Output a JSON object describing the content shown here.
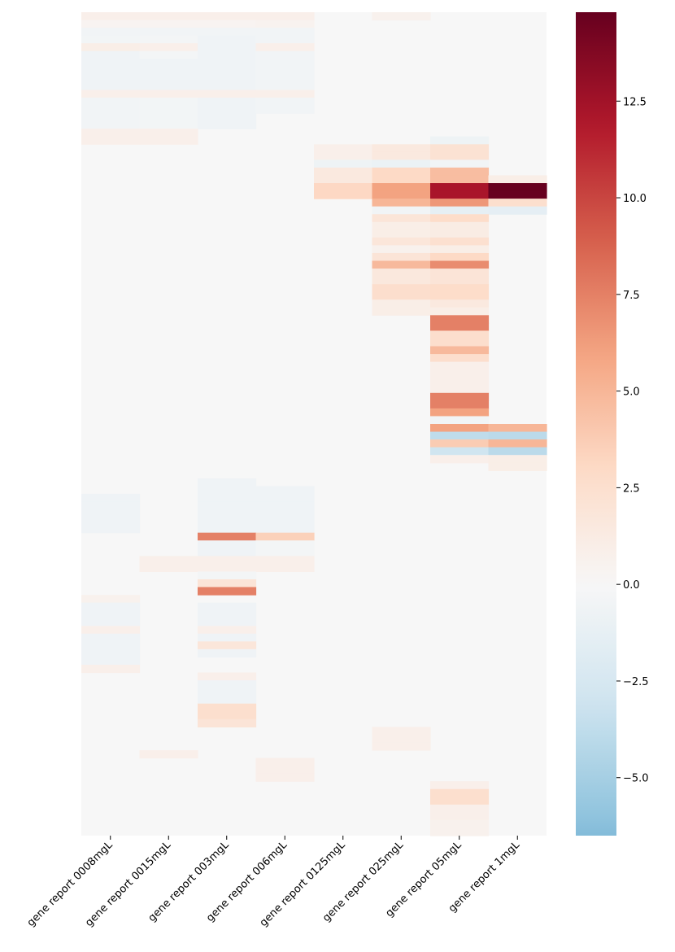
{
  "chart_data": {
    "type": "heatmap",
    "title": "",
    "xlabel": "",
    "ylabel": "",
    "columns": [
      "gene report 0008mgL",
      "gene report 0015mgL",
      "gene report 003mgL",
      "gene report 006mgL",
      "gene report 0125mgL",
      "gene report 025mgL",
      "gene report 05mgL",
      "gene report 1mgL"
    ],
    "n_rows": 106,
    "colormap": "RdBu_r",
    "center": 0,
    "vmin": -6.5,
    "vmax": 14.8,
    "colorbar_ticks": [
      -5.0,
      -2.5,
      0.0,
      2.5,
      5.0,
      7.5,
      10.0,
      12.5
    ],
    "colorbar_tick_labels": [
      "−5.0",
      "−2.5",
      "0.0",
      "2.5",
      "5.0",
      "7.5",
      "10.0",
      "12.5"
    ],
    "cells": [
      [
        0,
        1,
        0.8
      ],
      [
        0,
        2,
        0.8
      ],
      [
        0,
        3,
        0.8
      ],
      [
        0,
        4,
        0.8
      ],
      [
        0,
        6,
        0.6
      ],
      [
        1,
        1,
        0.4
      ],
      [
        1,
        2,
        0.4
      ],
      [
        1,
        3,
        0.4
      ],
      [
        1,
        4,
        0.5
      ],
      [
        2,
        1,
        -0.5
      ],
      [
        2,
        2,
        -0.5
      ],
      [
        2,
        3,
        -0.5
      ],
      [
        2,
        4,
        -0.5
      ],
      [
        3,
        1,
        -0.4
      ],
      [
        3,
        2,
        -0.3
      ],
      [
        3,
        3,
        -0.6
      ],
      [
        3,
        4,
        -0.5
      ],
      [
        4,
        1,
        1.0
      ],
      [
        4,
        2,
        0.8
      ],
      [
        4,
        3,
        -0.6
      ],
      [
        4,
        4,
        0.8
      ],
      [
        5,
        1,
        -0.6
      ],
      [
        5,
        2,
        -0.3
      ],
      [
        5,
        3,
        -0.6
      ],
      [
        5,
        4,
        -0.5
      ],
      [
        6,
        1,
        -0.6
      ],
      [
        6,
        2,
        -0.6
      ],
      [
        6,
        3,
        -0.6
      ],
      [
        6,
        4,
        -0.5
      ],
      [
        7,
        1,
        -0.6
      ],
      [
        7,
        2,
        -0.6
      ],
      [
        7,
        3,
        -0.6
      ],
      [
        7,
        4,
        -0.5
      ],
      [
        8,
        1,
        -0.6
      ],
      [
        8,
        2,
        -0.6
      ],
      [
        8,
        3,
        -0.6
      ],
      [
        8,
        4,
        -0.5
      ],
      [
        9,
        1,
        -0.6
      ],
      [
        9,
        2,
        -0.6
      ],
      [
        9,
        3,
        -0.6
      ],
      [
        9,
        4,
        -0.5
      ],
      [
        10,
        1,
        0.8
      ],
      [
        10,
        2,
        0.8
      ],
      [
        10,
        3,
        0.8
      ],
      [
        10,
        4,
        0.8
      ],
      [
        11,
        1,
        -0.5
      ],
      [
        11,
        2,
        -0.4
      ],
      [
        11,
        3,
        -0.6
      ],
      [
        11,
        4,
        -0.5
      ],
      [
        12,
        1,
        -0.5
      ],
      [
        12,
        2,
        -0.4
      ],
      [
        12,
        3,
        -0.6
      ],
      [
        12,
        4,
        -0.5
      ],
      [
        13,
        1,
        -0.5
      ],
      [
        13,
        2,
        -0.4
      ],
      [
        13,
        3,
        -0.6
      ],
      [
        14,
        1,
        -0.5
      ],
      [
        14,
        2,
        -0.4
      ],
      [
        14,
        3,
        -0.6
      ],
      [
        15,
        1,
        0.8
      ],
      [
        15,
        2,
        0.8
      ],
      [
        16,
        1,
        0.8
      ],
      [
        16,
        2,
        0.8
      ],
      [
        16,
        7,
        -0.7
      ],
      [
        17,
        5,
        0.8
      ],
      [
        17,
        6,
        1.5
      ],
      [
        17,
        7,
        2.2
      ],
      [
        18,
        5,
        0.8
      ],
      [
        18,
        6,
        1.5
      ],
      [
        18,
        7,
        2.2
      ],
      [
        19,
        5,
        -0.7
      ],
      [
        19,
        6,
        -0.9
      ],
      [
        19,
        7,
        -0.5
      ],
      [
        20,
        5,
        1.5
      ],
      [
        20,
        6,
        3.0
      ],
      [
        20,
        7,
        4.6
      ],
      [
        21,
        5,
        1.5
      ],
      [
        21,
        6,
        3.0
      ],
      [
        21,
        7,
        4.6
      ],
      [
        21,
        8,
        1.0
      ],
      [
        22,
        5,
        3.1
      ],
      [
        22,
        6,
        6.0
      ],
      [
        22,
        7,
        12.2
      ],
      [
        22,
        8,
        14.8
      ],
      [
        23,
        5,
        3.1
      ],
      [
        23,
        6,
        6.0
      ],
      [
        23,
        7,
        12.2
      ],
      [
        23,
        8,
        14.8
      ],
      [
        24,
        6,
        5.0
      ],
      [
        24,
        7,
        6.5
      ],
      [
        24,
        8,
        2.5
      ],
      [
        25,
        6,
        -0.5
      ],
      [
        25,
        7,
        -1.3
      ],
      [
        25,
        8,
        -1.4
      ],
      [
        26,
        6,
        1.9
      ],
      [
        26,
        7,
        2.8
      ],
      [
        27,
        6,
        1.0
      ],
      [
        27,
        7,
        1.2
      ],
      [
        28,
        6,
        1.0
      ],
      [
        28,
        7,
        1.2
      ],
      [
        29,
        6,
        1.8
      ],
      [
        29,
        7,
        2.4
      ],
      [
        30,
        6,
        0.6
      ],
      [
        30,
        7,
        1.0
      ],
      [
        31,
        6,
        2.0
      ],
      [
        31,
        7,
        3.0
      ],
      [
        32,
        6,
        4.8
      ],
      [
        32,
        7,
        7.0
      ],
      [
        33,
        6,
        1.6
      ],
      [
        33,
        7,
        2.0
      ],
      [
        34,
        6,
        1.6
      ],
      [
        34,
        7,
        2.0
      ],
      [
        35,
        6,
        2.6
      ],
      [
        35,
        7,
        2.8
      ],
      [
        36,
        6,
        2.6
      ],
      [
        36,
        7,
        2.8
      ],
      [
        37,
        6,
        1.0
      ],
      [
        37,
        7,
        1.5
      ],
      [
        38,
        6,
        1.0
      ],
      [
        38,
        7,
        1.0
      ],
      [
        39,
        7,
        7.5
      ],
      [
        40,
        7,
        7.5
      ],
      [
        41,
        7,
        2.6
      ],
      [
        42,
        7,
        2.6
      ],
      [
        43,
        7,
        4.8
      ],
      [
        44,
        7,
        2.6
      ],
      [
        45,
        7,
        0.8
      ],
      [
        46,
        7,
        0.8
      ],
      [
        47,
        7,
        0.8
      ],
      [
        48,
        7,
        0.8
      ],
      [
        49,
        7,
        7.5
      ],
      [
        50,
        7,
        7.5
      ],
      [
        51,
        7,
        6.0
      ],
      [
        52,
        7,
        -0.5
      ],
      [
        53,
        7,
        6.0
      ],
      [
        53,
        8,
        5.0
      ],
      [
        54,
        7,
        -3.8
      ],
      [
        54,
        8,
        -4.0
      ],
      [
        55,
        7,
        3.8
      ],
      [
        55,
        8,
        5.0
      ],
      [
        56,
        7,
        -3.0
      ],
      [
        56,
        8,
        -4.0
      ],
      [
        57,
        7,
        0.8
      ],
      [
        57,
        8,
        1.0
      ],
      [
        58,
        8,
        1.0
      ],
      [
        60,
        3,
        -0.6
      ],
      [
        61,
        3,
        -0.6
      ],
      [
        61,
        4,
        -0.6
      ],
      [
        62,
        1,
        -0.6
      ],
      [
        62,
        3,
        -0.6
      ],
      [
        62,
        4,
        -0.6
      ],
      [
        63,
        1,
        -0.6
      ],
      [
        63,
        3,
        -0.6
      ],
      [
        63,
        4,
        -0.6
      ],
      [
        64,
        1,
        -0.6
      ],
      [
        64,
        3,
        -0.6
      ],
      [
        64,
        4,
        -0.6
      ],
      [
        65,
        1,
        -0.6
      ],
      [
        65,
        3,
        -0.6
      ],
      [
        65,
        4,
        -0.6
      ],
      [
        66,
        1,
        -0.6
      ],
      [
        66,
        3,
        -0.6
      ],
      [
        66,
        4,
        -0.6
      ],
      [
        67,
        3,
        7.5
      ],
      [
        67,
        4,
        3.5
      ],
      [
        68,
        3,
        -0.6
      ],
      [
        68,
        4,
        -0.3
      ],
      [
        69,
        3,
        -0.6
      ],
      [
        69,
        4,
        -0.3
      ],
      [
        70,
        2,
        0.8
      ],
      [
        70,
        3,
        0.8
      ],
      [
        70,
        4,
        0.8
      ],
      [
        71,
        2,
        0.8
      ],
      [
        71,
        3,
        0.8
      ],
      [
        71,
        4,
        0.8
      ],
      [
        72,
        3,
        -0.3
      ],
      [
        73,
        3,
        2.0
      ],
      [
        74,
        3,
        7.5
      ],
      [
        75,
        1,
        0.6
      ],
      [
        76,
        1,
        -0.6
      ],
      [
        76,
        3,
        -0.6
      ],
      [
        77,
        1,
        -0.6
      ],
      [
        77,
        3,
        -0.6
      ],
      [
        78,
        1,
        -0.6
      ],
      [
        78,
        3,
        -0.6
      ],
      [
        79,
        1,
        0.8
      ],
      [
        79,
        3,
        0.8
      ],
      [
        80,
        1,
        -0.6
      ],
      [
        80,
        3,
        -0.6
      ],
      [
        81,
        1,
        -0.6
      ],
      [
        81,
        3,
        1.8
      ],
      [
        82,
        1,
        -0.6
      ],
      [
        82,
        3,
        -0.6
      ],
      [
        83,
        1,
        -0.6
      ],
      [
        84,
        1,
        0.8
      ],
      [
        85,
        3,
        0.8
      ],
      [
        86,
        3,
        -0.6
      ],
      [
        87,
        3,
        -0.6
      ],
      [
        88,
        3,
        -0.6
      ],
      [
        89,
        3,
        2.5
      ],
      [
        90,
        3,
        2.5
      ],
      [
        91,
        3,
        2.0
      ],
      [
        92,
        6,
        0.8
      ],
      [
        93,
        6,
        0.8
      ],
      [
        94,
        6,
        0.8
      ],
      [
        95,
        2,
        0.8
      ],
      [
        96,
        4,
        0.8
      ],
      [
        97,
        4,
        0.8
      ],
      [
        98,
        4,
        0.8
      ],
      [
        99,
        7,
        0.8
      ],
      [
        100,
        7,
        2.5
      ],
      [
        101,
        7,
        2.5
      ],
      [
        102,
        7,
        0.8
      ],
      [
        103,
        7,
        0.8
      ],
      [
        104,
        7,
        0.6
      ],
      [
        105,
        7,
        0.6
      ]
    ]
  }
}
